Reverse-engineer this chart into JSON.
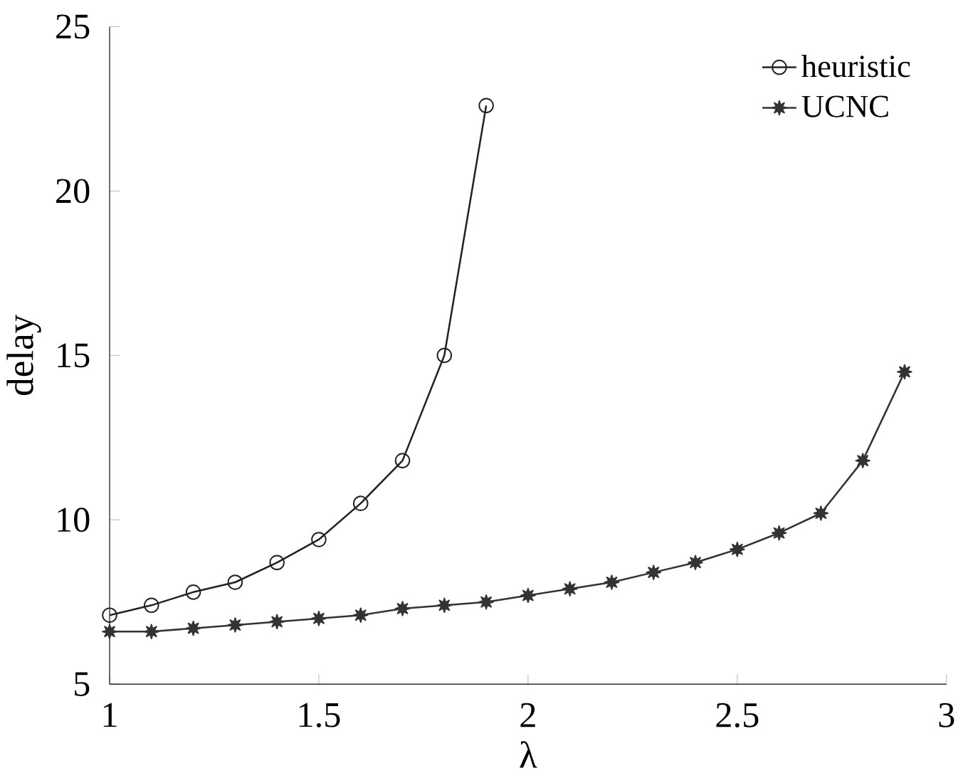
{
  "chart_data": {
    "type": "line",
    "xlabel": "λ",
    "ylabel": "delay",
    "xlim": [
      1,
      3
    ],
    "ylim": [
      5,
      25
    ],
    "xticks": [
      1,
      1.5,
      2,
      2.5,
      3
    ],
    "yticks": [
      5,
      10,
      15,
      20,
      25
    ],
    "grid": false,
    "legend": "top right",
    "line_style": "solid",
    "series": [
      {
        "name": "heuristic",
        "color": "#222222",
        "marker": "circle",
        "x": [
          1,
          1.1,
          1.2,
          1.3,
          1.4,
          1.5,
          1.6,
          1.7,
          1.8,
          1.9
        ],
        "values": [
          7.1,
          7.4,
          7.8,
          8.1,
          8.7,
          9.4,
          10.5,
          11.8,
          15.0,
          22.6
        ]
      },
      {
        "name": "UCNC",
        "color": "#333333",
        "marker": "star",
        "x": [
          1,
          1.1,
          1.2,
          1.3,
          1.4,
          1.5,
          1.6,
          1.7,
          1.8,
          1.9,
          2,
          2.1,
          2.2,
          2.3,
          2.4,
          2.5,
          2.6,
          2.7,
          2.8,
          2.9
        ],
        "values": [
          6.6,
          6.6,
          6.7,
          6.8,
          6.9,
          7.0,
          7.1,
          7.3,
          7.4,
          7.5,
          7.7,
          7.9,
          8.1,
          8.4,
          8.7,
          9.1,
          9.6,
          10.2,
          11.8,
          14.5
        ]
      }
    ]
  }
}
